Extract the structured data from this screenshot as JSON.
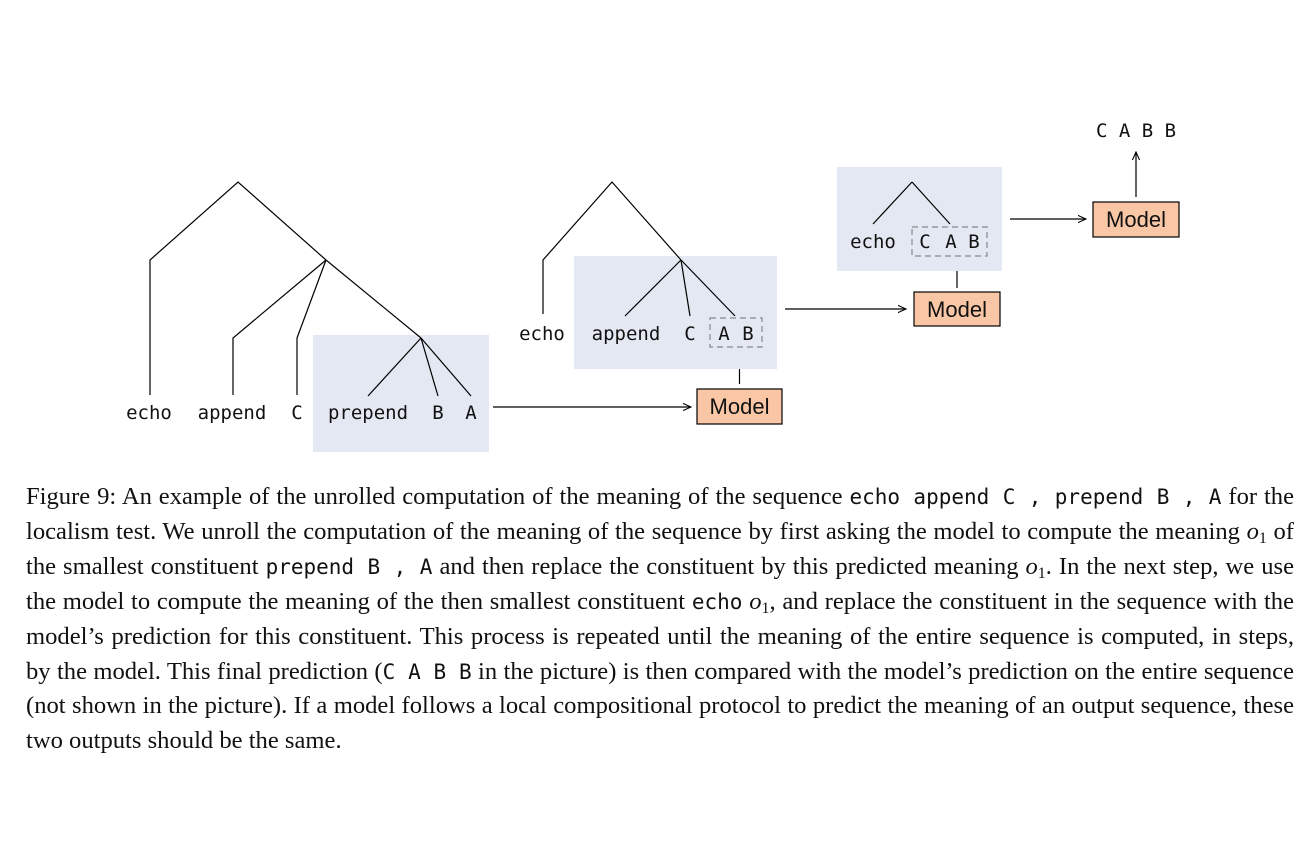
{
  "figure": {
    "model_label": "Model",
    "stage1": {
      "tokens": [
        "echo",
        "append",
        "C",
        "prepend",
        "B",
        "A"
      ]
    },
    "stage2": {
      "tokens": [
        "echo",
        "append",
        "C"
      ],
      "output": [
        "A",
        "B"
      ]
    },
    "stage3": {
      "tokens": [
        "echo"
      ],
      "output": [
        "C",
        "A",
        "B"
      ]
    },
    "final_output": "C A B B",
    "colors": {
      "highlight": "#e3e8f2",
      "model_fill": "#f9c7a6",
      "line": "#000000",
      "dashed": "#888888"
    }
  },
  "caption": {
    "figure_label": "Figure 9:",
    "t1": "An example of the unrolled computation of the meaning of the sequence",
    "c1": "echo append C , prepend B , A",
    "t2": "for the localism test. We unroll the computation of the meaning of the sequence by first asking the model to compute the meaning",
    "m1": "o",
    "m1_sub": "1",
    "t3": "of the smallest constituent",
    "c2": "prepend B , A",
    "t4": "and then replace the constituent by this predicted meaning",
    "m2": "o",
    "m2_sub": "1",
    "t5": ". In the next step, we use the model to compute the meaning of the then smallest constituent",
    "c3": "echo",
    "m3": "o",
    "m3_sub": "1",
    "t6": ", and replace the constituent in the sequence with the model’s prediction for this constituent.  This process is repeated until the meaning of the entire sequence is computed, in steps, by the model. This final prediction (",
    "c4": "C A B B",
    "t7": "in the picture) is then compared with the model’s prediction on the entire sequence (not shown in the picture). If a model follows a local compositional protocol to predict the meaning of an output sequence, these two outputs should be the same."
  }
}
